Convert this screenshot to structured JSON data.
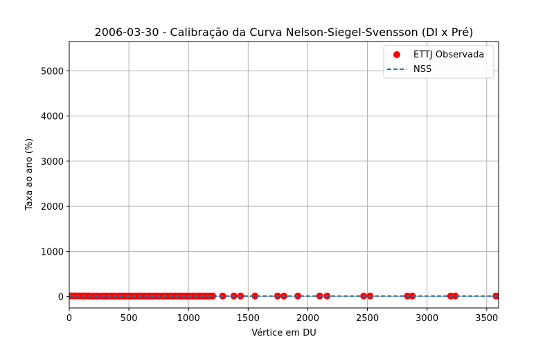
{
  "chart_data": {
    "type": "scatter",
    "title": "2006-03-30 - Calibração da Curva Nelson-Siegel-Svensson (DI x Pré)",
    "xlabel": "Vértice em DU",
    "ylabel": "Taxa ao ano (%)",
    "xlim": [
      0,
      3600
    ],
    "ylim": [
      -250,
      5650
    ],
    "xticks": [
      0,
      500,
      1000,
      1500,
      2000,
      2500,
      3000,
      3500
    ],
    "yticks": [
      0,
      1000,
      2000,
      3000,
      4000,
      5000
    ],
    "grid": true,
    "legend_position": "top-right",
    "series": [
      {
        "name": "ETTJ Observada",
        "kind": "scatter",
        "color": "#ff0000",
        "x": [
          1,
          21,
          42,
          62,
          83,
          103,
          124,
          145,
          166,
          188,
          209,
          231,
          253,
          273,
          294,
          314,
          336,
          357,
          378,
          399,
          419,
          440,
          461,
          481,
          503,
          524,
          545,
          566,
          587,
          608,
          630,
          651,
          672,
          693,
          714,
          736,
          758,
          780,
          801,
          822,
          843,
          864,
          885,
          906,
          927,
          948,
          970,
          991,
          1013,
          1035,
          1056,
          1077,
          1098,
          1120,
          1140,
          1161,
          1182,
          1203,
          1287,
          1380,
          1437,
          1558,
          1747,
          1800,
          1917,
          2101,
          2162,
          2469,
          2523,
          2836,
          2877,
          3198,
          3236,
          3578,
          3600
        ],
        "y": [
          16.6,
          16.5,
          16.3,
          16.1,
          15.9,
          15.7,
          15.6,
          15.5,
          15.4,
          15.3,
          15.2,
          15.1,
          15.0,
          15.0,
          14.9,
          14.9,
          14.9,
          14.8,
          14.8,
          14.8,
          14.8,
          14.8,
          14.7,
          14.7,
          14.7,
          14.7,
          14.7,
          14.7,
          14.7,
          14.7,
          14.7,
          14.7,
          14.7,
          14.7,
          14.7,
          14.7,
          14.7,
          14.7,
          14.7,
          14.7,
          14.7,
          14.7,
          14.7,
          14.7,
          14.7,
          14.7,
          14.7,
          14.7,
          14.7,
          14.7,
          14.7,
          14.7,
          14.7,
          14.7,
          14.7,
          14.7,
          14.7,
          14.7,
          14.7,
          14.7,
          14.7,
          14.7,
          14.7,
          14.7,
          14.7,
          14.7,
          14.7,
          14.7,
          14.7,
          14.7,
          14.7,
          14.7,
          14.7,
          14.7,
          14.7
        ]
      },
      {
        "name": "NSS",
        "kind": "line",
        "dashed": true,
        "color": "#1f77b4",
        "x": [
          1,
          100,
          200,
          300,
          500,
          750,
          1000,
          1500,
          2000,
          2500,
          3000,
          3600
        ],
        "y": [
          16.6,
          15.8,
          15.3,
          15.0,
          14.8,
          14.7,
          14.7,
          14.7,
          14.7,
          14.7,
          14.7,
          14.7
        ]
      }
    ]
  }
}
